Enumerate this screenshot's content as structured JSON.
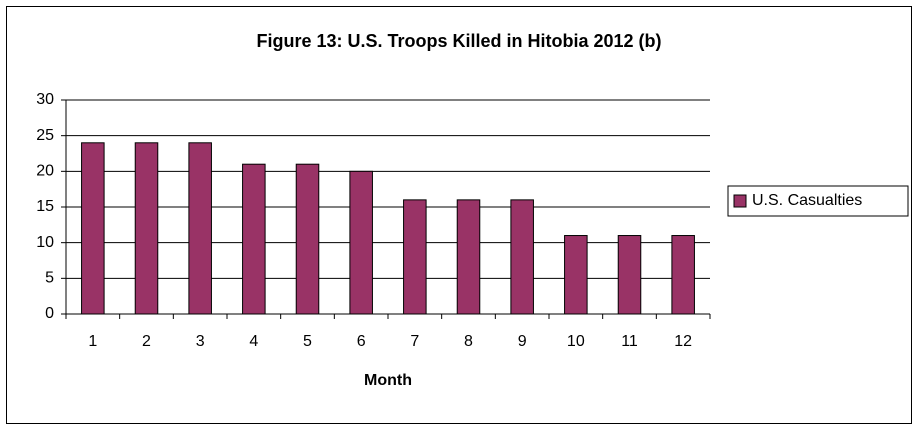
{
  "chart_data": {
    "type": "bar",
    "title": "Figure 13: U.S. Troops Killed in Hitobia 2012 (b)",
    "x_label": "Month",
    "categories": [
      "1",
      "2",
      "3",
      "4",
      "5",
      "6",
      "7",
      "8",
      "9",
      "10",
      "11",
      "12"
    ],
    "series": [
      {
        "name": "U.S. Casualties",
        "color": "#993366",
        "values": [
          24,
          24,
          24,
          21,
          21,
          20,
          16,
          16,
          16,
          11,
          11,
          11
        ]
      }
    ],
    "ylim": [
      0,
      30
    ],
    "yticks": [
      0,
      5,
      10,
      15,
      20,
      25,
      30
    ],
    "grid": true,
    "legend": "right"
  }
}
